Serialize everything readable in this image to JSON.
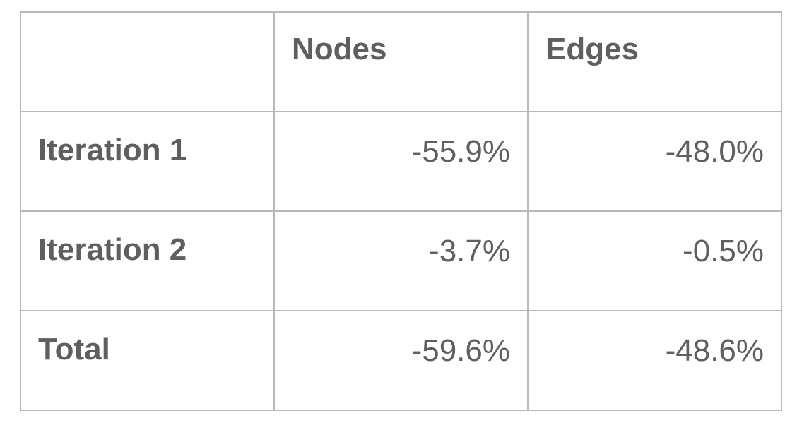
{
  "table": {
    "headers": [
      "",
      "Nodes",
      "Edges"
    ],
    "rows": [
      {
        "label": "Iteration 1",
        "nodes": "-55.9%",
        "edges": "-48.0%"
      },
      {
        "label": "Iteration 2",
        "nodes": "-3.7%",
        "edges": "-0.5%"
      },
      {
        "label": "Total",
        "nodes": "-59.6%",
        "edges": "-48.6%"
      }
    ]
  },
  "colors": {
    "text": "#5f5f5f",
    "border": "#b9b9b9",
    "background": "#ffffff"
  }
}
